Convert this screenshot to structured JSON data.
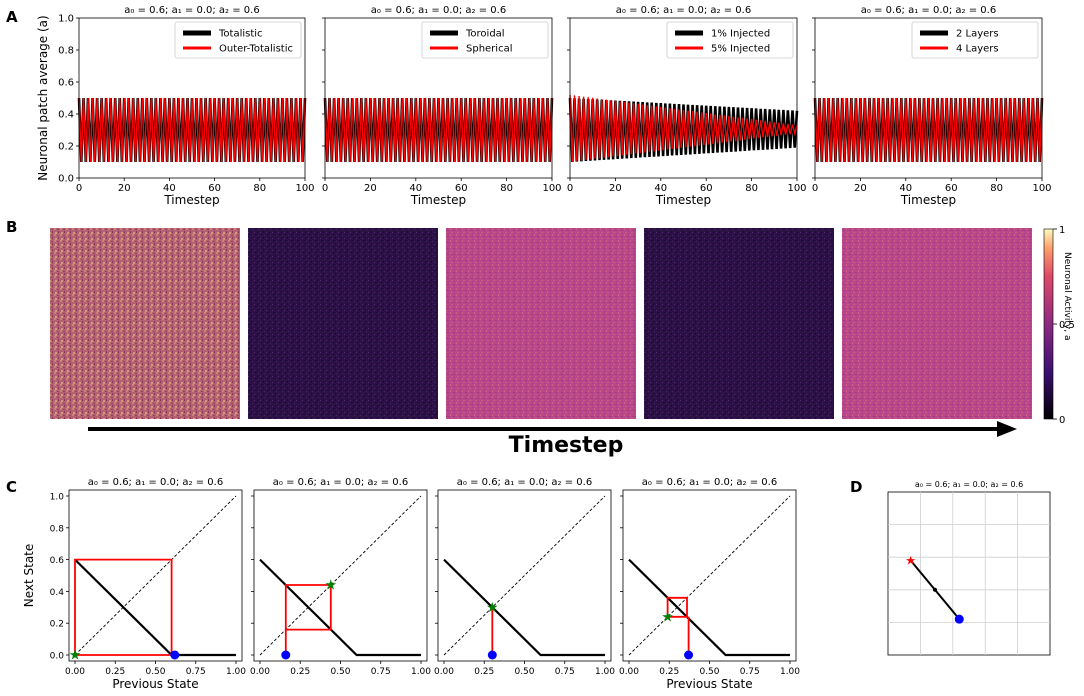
{
  "panel_letters": {
    "A": "A",
    "B": "B",
    "C": "C",
    "D": "D"
  },
  "arrow_label": "Timestep",
  "colorbar": {
    "label": "Neuronal Activity, a",
    "ticks": [
      "0",
      "0.5",
      "1"
    ]
  },
  "colors": {
    "black": "#000000",
    "red": "#ff0000",
    "blue": "#0000ff",
    "green": "#008000",
    "dark_heatmap": "#2b1346",
    "pink_heatmap": "#b8488a",
    "dusty_heatmap": "#b56270"
  },
  "chart_data": [
    {
      "id": "A1",
      "type": "line",
      "title": "a₀ = 0.6; a₁ = 0.0; a₂ = 0.6",
      "xlabel": "Timestep",
      "ylabel": "Neuronal patch average (a)",
      "xlim": [
        0,
        100
      ],
      "ylim": [
        0,
        1.0
      ],
      "xticks": [
        "0",
        "20",
        "40",
        "60",
        "80",
        "100"
      ],
      "yticks": [
        "0.0",
        "0.2",
        "0.4",
        "0.6",
        "0.8",
        "1.0"
      ],
      "series": [
        {
          "name": "Totalistic",
          "color": "#000000",
          "oscillation": {
            "start_high": 0.5,
            "start_low": 0.1,
            "end_high": 0.5,
            "end_low": 0.1
          }
        },
        {
          "name": "Outer-Totalistic",
          "color": "#ff0000",
          "oscillation": {
            "start_high": 0.5,
            "start_low": 0.1,
            "end_high": 0.5,
            "end_low": 0.1
          }
        }
      ]
    },
    {
      "id": "A2",
      "type": "line",
      "title": "a₀ = 0.6; a₁ = 0.0; a₂ = 0.6",
      "xlabel": "Timestep",
      "xlim": [
        0,
        100
      ],
      "ylim": [
        0,
        1.0
      ],
      "xticks": [
        "0",
        "20",
        "40",
        "60",
        "80",
        "100"
      ],
      "series": [
        {
          "name": "Toroidal",
          "color": "#000000",
          "oscillation": {
            "start_high": 0.5,
            "start_low": 0.1,
            "end_high": 0.5,
            "end_low": 0.1
          }
        },
        {
          "name": "Spherical",
          "color": "#ff0000",
          "oscillation": {
            "start_high": 0.5,
            "start_low": 0.1,
            "end_high": 0.5,
            "end_low": 0.1
          }
        }
      ]
    },
    {
      "id": "A3",
      "type": "line",
      "title": "a₀ = 0.6; a₁ = 0.0; a₂ = 0.6",
      "xlabel": "Timestep",
      "xlim": [
        0,
        100
      ],
      "ylim": [
        0,
        1.0
      ],
      "xticks": [
        "0",
        "20",
        "40",
        "60",
        "80",
        "100"
      ],
      "series": [
        {
          "name": "1% Injected",
          "color": "#000000",
          "oscillation": {
            "start_high": 0.5,
            "start_low": 0.1,
            "end_high": 0.42,
            "end_low": 0.19
          }
        },
        {
          "name": "5% Injected",
          "color": "#ff0000",
          "oscillation": {
            "start_high": 0.52,
            "start_low": 0.1,
            "end_high": 0.33,
            "end_low": 0.28
          }
        }
      ]
    },
    {
      "id": "A4",
      "type": "line",
      "title": "a₀ = 0.6; a₁ = 0.0; a₂ = 0.6",
      "xlabel": "Timestep",
      "xlim": [
        0,
        100
      ],
      "ylim": [
        0,
        1.0
      ],
      "xticks": [
        "0",
        "20",
        "40",
        "60",
        "80",
        "100"
      ],
      "series": [
        {
          "name": "2 Layers",
          "color": "#000000",
          "oscillation": {
            "start_high": 0.5,
            "start_low": 0.1,
            "end_high": 0.5,
            "end_low": 0.1
          }
        },
        {
          "name": "4 Layers",
          "color": "#ff0000",
          "oscillation": {
            "start_high": 0.5,
            "start_low": 0.1,
            "end_high": 0.5,
            "end_low": 0.1
          }
        }
      ]
    },
    {
      "id": "B",
      "type": "heatmap",
      "description_levels": [
        0.55,
        0.12,
        0.6,
        0.1,
        0.6
      ],
      "colorbar_range": [
        0,
        1
      ]
    },
    {
      "id": "C1",
      "type": "line",
      "title": "a₀ = 0.6; a₁ = 0.0; a₂ = 0.6",
      "xlabel": "Previous State",
      "ylabel": "Next State",
      "xlim": [
        0,
        1.0
      ],
      "ylim": [
        0,
        1.0
      ],
      "xticks": [
        "0.00",
        "0.25",
        "0.50",
        "0.75",
        "1.00"
      ],
      "yticks": [
        "0.0",
        "0.2",
        "0.4",
        "0.6",
        "0.8",
        "1.0"
      ],
      "map_curve": [
        [
          0,
          0.6
        ],
        [
          0.6,
          0.0
        ],
        [
          1.0,
          0.0
        ]
      ],
      "cobweb": [
        [
          0,
          0
        ],
        [
          0,
          0.6
        ],
        [
          0.6,
          0.6
        ],
        [
          0.6,
          0
        ],
        [
          0,
          0
        ]
      ],
      "stem": [],
      "start_point": [
        0.62,
        0
      ],
      "star_point": [
        0,
        0
      ]
    },
    {
      "id": "C2",
      "type": "line",
      "title": "a₀ = 0.6; a₁ = 0.0; a₂ = 0.6",
      "xlabel": "",
      "xlim": [
        0,
        1.0
      ],
      "ylim": [
        0,
        1.0
      ],
      "xticks": [
        "0.00",
        "0.25",
        "0.50",
        "0.75",
        "1.00"
      ],
      "map_curve": [
        [
          0,
          0.6
        ],
        [
          0.6,
          0.0
        ],
        [
          1.0,
          0.0
        ]
      ],
      "cobweb": [
        [
          0.16,
          0.16
        ],
        [
          0.16,
          0.44
        ],
        [
          0.44,
          0.44
        ],
        [
          0.44,
          0.16
        ],
        [
          0.16,
          0.16
        ]
      ],
      "stem": [
        [
          0.16,
          0
        ],
        [
          0.16,
          0.16
        ]
      ],
      "start_point": [
        0.16,
        0
      ],
      "star_point": [
        0.44,
        0.44
      ]
    },
    {
      "id": "C3",
      "type": "line",
      "title": "a₀ = 0.6; a₁ = 0.0; a₂ = 0.6",
      "xlabel": "",
      "xlim": [
        0,
        1.0
      ],
      "ylim": [
        0,
        1.0
      ],
      "xticks": [
        "0.00",
        "0.25",
        "0.50",
        "0.75",
        "1.00"
      ],
      "map_curve": [
        [
          0,
          0.6
        ],
        [
          0.6,
          0.0
        ],
        [
          1.0,
          0.0
        ]
      ],
      "cobweb": [],
      "stem": [
        [
          0.3,
          0
        ],
        [
          0.3,
          0.3
        ]
      ],
      "start_point": [
        0.3,
        0
      ],
      "star_point": [
        0.3,
        0.3
      ]
    },
    {
      "id": "C4",
      "type": "line",
      "title": "a₀ = 0.6; a₁ = 0.0; a₂ = 0.6",
      "xlabel": "Previous State",
      "xlim": [
        0,
        1.0
      ],
      "ylim": [
        0,
        1.0
      ],
      "xticks": [
        "0.00",
        "0.25",
        "0.50",
        "0.75",
        "1.00"
      ],
      "map_curve": [
        [
          0,
          0.6
        ],
        [
          0.6,
          0.0
        ],
        [
          1.0,
          0.0
        ]
      ],
      "cobweb": [
        [
          0.24,
          0.24
        ],
        [
          0.24,
          0.36
        ],
        [
          0.36,
          0.36
        ],
        [
          0.36,
          0.24
        ],
        [
          0.24,
          0.24
        ]
      ],
      "stem": [
        [
          0.37,
          0
        ],
        [
          0.37,
          0.24
        ]
      ],
      "start_point": [
        0.37,
        0
      ],
      "star_point": [
        0.24,
        0.24
      ]
    },
    {
      "id": "D",
      "type": "line",
      "title": "a₀ = 0.6; a₁ = 0.0; a₂ = 0.6",
      "xlim": [
        0,
        1.0
      ],
      "ylim": [
        0,
        1.0
      ],
      "trajectory": [
        [
          0.14,
          0.58
        ],
        [
          0.44,
          0.22
        ]
      ],
      "start_point": [
        0.44,
        0.22
      ],
      "star_point": [
        0.14,
        0.58
      ]
    }
  ]
}
